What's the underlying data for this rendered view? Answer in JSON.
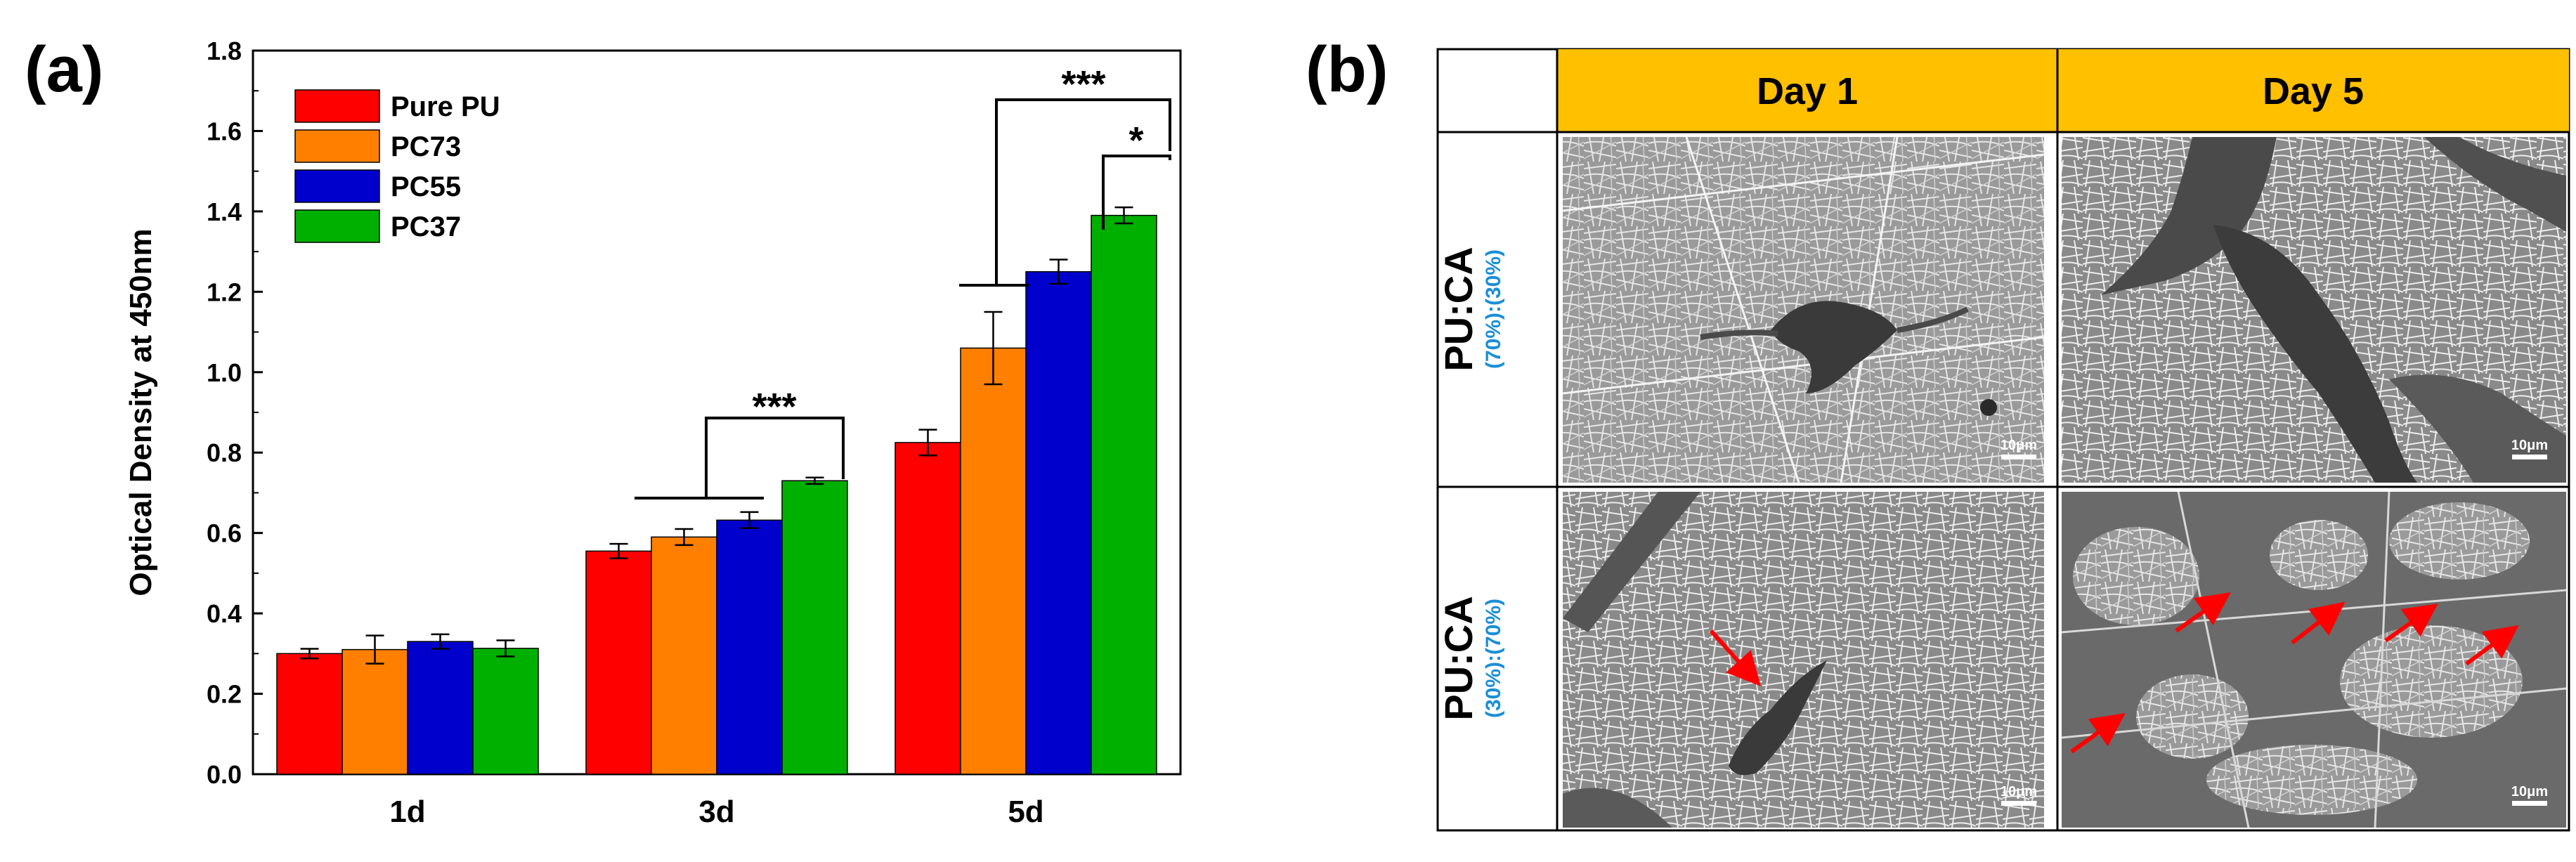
{
  "panel_a_label": "(a)",
  "panel_b_label": "(b)",
  "chart_data": {
    "type": "bar",
    "title": "",
    "xlabel": "",
    "ylabel": "Optical Density at 450nm",
    "ylim": [
      0,
      1.8
    ],
    "yticks": [
      "0.0",
      "0.2",
      "0.4",
      "0.6",
      "0.8",
      "1.0",
      "1.2",
      "1.4",
      "1.6",
      "1.8"
    ],
    "categories": [
      "1d",
      "3d",
      "5d"
    ],
    "legend_position": "top-left",
    "series": [
      {
        "name": "Pure PU",
        "color": "#ff0000",
        "values": [
          0.3,
          0.555,
          0.825
        ],
        "errors": [
          0.012,
          0.018,
          0.032
        ]
      },
      {
        "name": "PC73",
        "color": "#ff8000",
        "values": [
          0.31,
          0.59,
          1.06
        ],
        "errors": [
          0.035,
          0.02,
          0.09
        ]
      },
      {
        "name": "PC55",
        "color": "#0000cc",
        "values": [
          0.33,
          0.632,
          1.25
        ],
        "errors": [
          0.018,
          0.02,
          0.03
        ]
      },
      {
        "name": "PC37",
        "color": "#00b000",
        "values": [
          0.313,
          0.73,
          1.39
        ],
        "errors": [
          0.02,
          0.008,
          0.02
        ]
      }
    ],
    "annotations": [
      {
        "label": "***",
        "category": "3d"
      },
      {
        "label": "***",
        "category": "5d"
      },
      {
        "label": "*",
        "category": "5d"
      }
    ]
  },
  "sem_grid": {
    "columns": [
      "Day 1",
      "Day 5"
    ],
    "rows": [
      {
        "label": "PU:CA",
        "sublabel": "(70%):(30%)"
      },
      {
        "label": "PU:CA",
        "sublabel": "(30%):(70%)"
      }
    ],
    "scale_bar_label": "10μm",
    "header_color": "#ffc000",
    "arrow_color": "#ff0000"
  }
}
